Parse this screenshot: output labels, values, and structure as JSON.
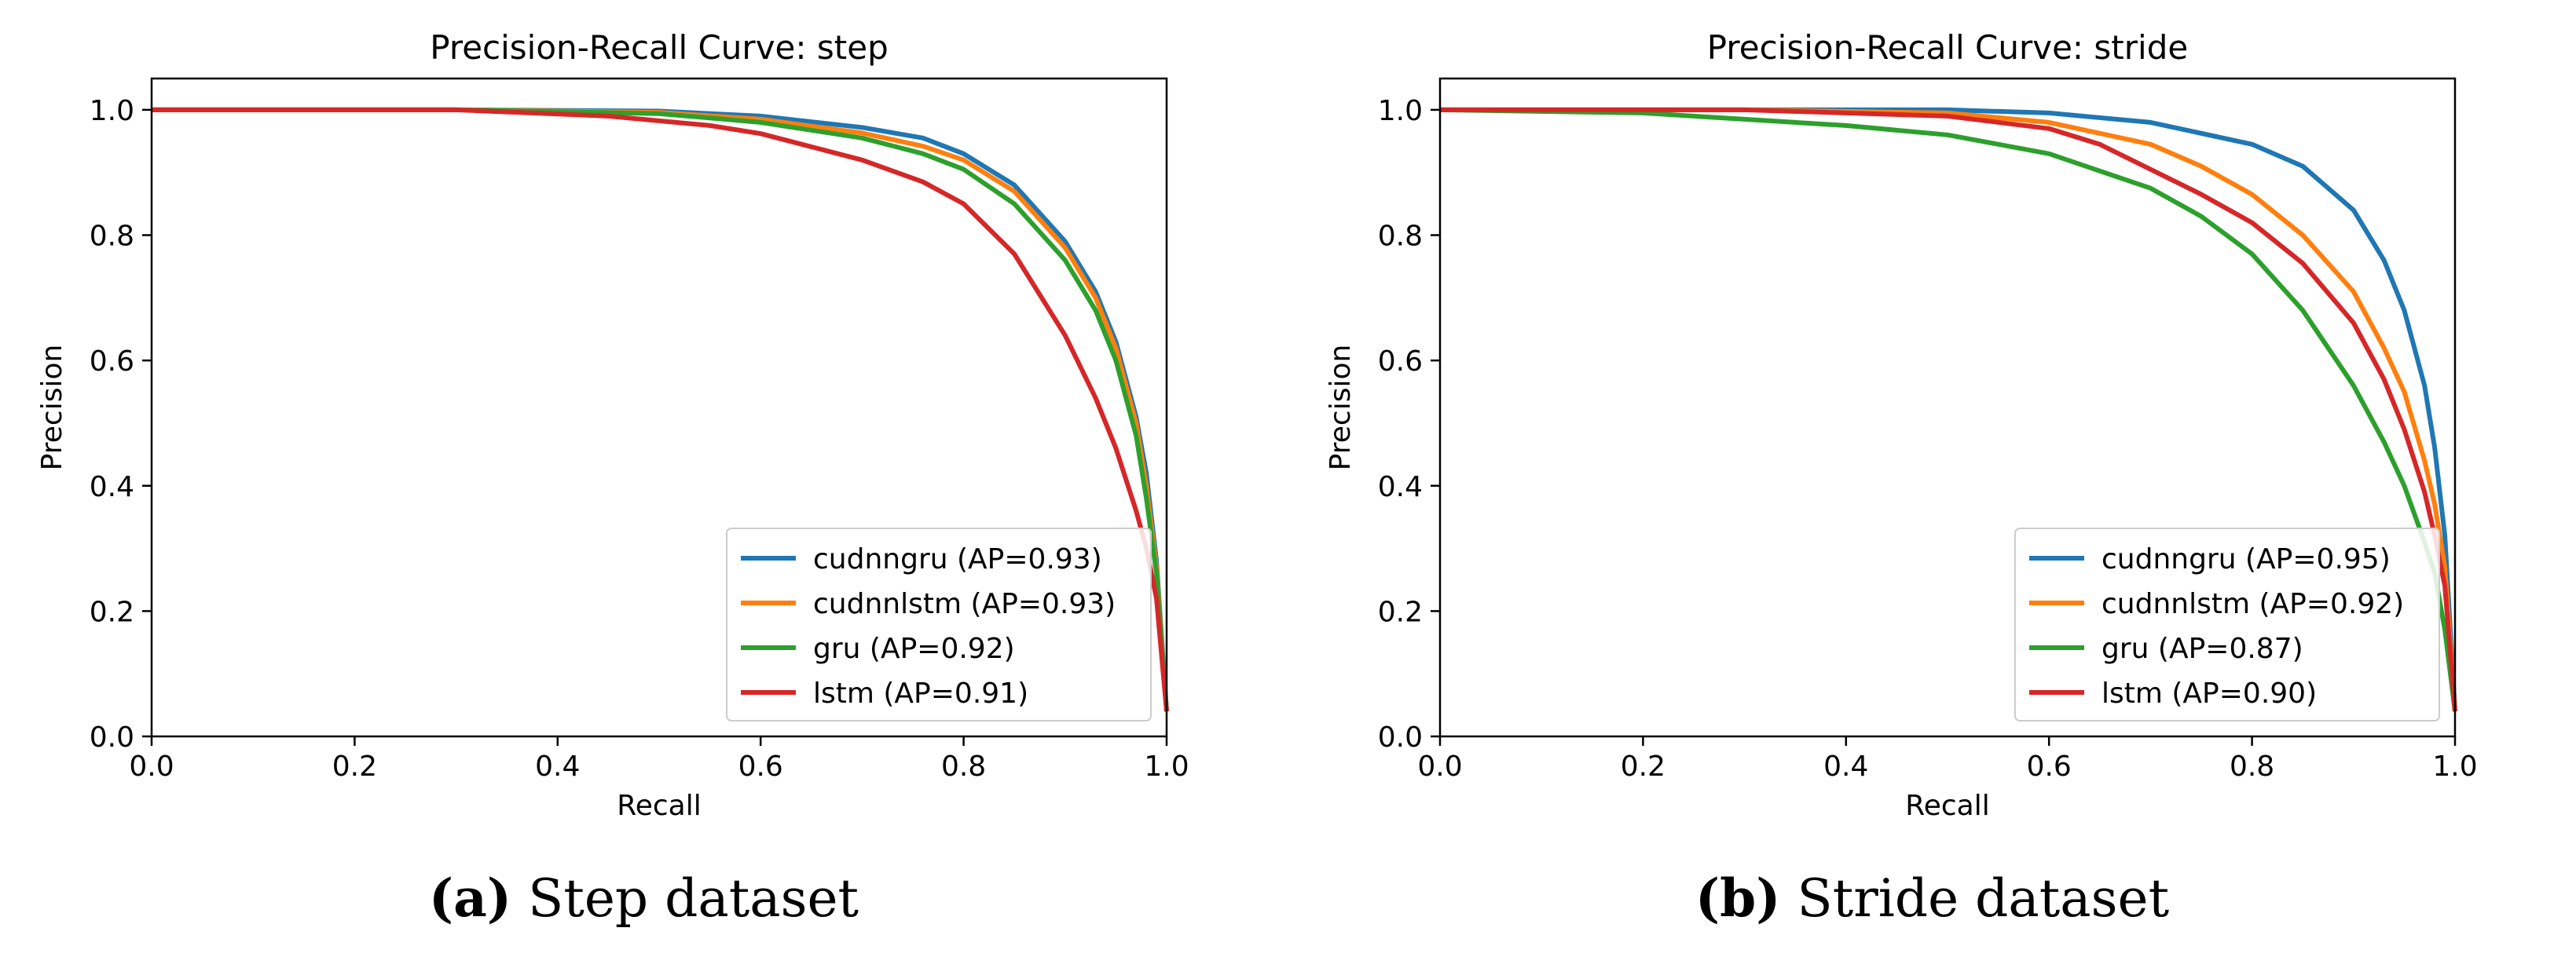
{
  "panels": [
    {
      "caption_label": "(a)",
      "caption_text": "Step dataset",
      "chart_data": {
        "type": "line",
        "title": "Precision-Recall Curve: step",
        "xlabel": "Recall",
        "ylabel": "Precision",
        "xlim": [
          0.0,
          1.0
        ],
        "ylim": [
          0.0,
          1.05
        ],
        "xticks": [
          "0.0",
          "0.2",
          "0.4",
          "0.6",
          "0.8",
          "1.0"
        ],
        "yticks": [
          "0.0",
          "0.2",
          "0.4",
          "0.6",
          "0.8",
          "1.0"
        ],
        "grid": false,
        "legend_position": "lower right",
        "series": [
          {
            "name": "cudnngru (AP=0.93)",
            "color": "#1f77b4",
            "x": [
              0.0,
              0.3,
              0.5,
              0.6,
              0.7,
              0.76,
              0.8,
              0.85,
              0.9,
              0.93,
              0.95,
              0.97,
              0.98,
              0.99,
              1.0
            ],
            "y": [
              1.0,
              1.0,
              0.998,
              0.99,
              0.972,
              0.955,
              0.93,
              0.88,
              0.79,
              0.71,
              0.63,
              0.51,
              0.42,
              0.28,
              0.04
            ]
          },
          {
            "name": "cudnnlstm (AP=0.93)",
            "color": "#ff7f0e",
            "x": [
              0.0,
              0.3,
              0.5,
              0.6,
              0.7,
              0.76,
              0.8,
              0.85,
              0.9,
              0.93,
              0.95,
              0.97,
              0.98,
              0.99,
              1.0
            ],
            "y": [
              1.0,
              1.0,
              0.996,
              0.985,
              0.963,
              0.942,
              0.92,
              0.87,
              0.78,
              0.7,
              0.62,
              0.5,
              0.4,
              0.27,
              0.04
            ]
          },
          {
            "name": "gru (AP=0.92)",
            "color": "#2ca02c",
            "x": [
              0.0,
              0.3,
              0.5,
              0.6,
              0.7,
              0.76,
              0.8,
              0.85,
              0.9,
              0.93,
              0.95,
              0.97,
              0.98,
              0.99,
              1.0
            ],
            "y": [
              1.0,
              1.0,
              0.994,
              0.98,
              0.955,
              0.93,
              0.905,
              0.85,
              0.76,
              0.68,
              0.6,
              0.48,
              0.38,
              0.26,
              0.04
            ]
          },
          {
            "name": "lstm (AP=0.91)",
            "color": "#d62728",
            "x": [
              0.0,
              0.3,
              0.45,
              0.55,
              0.6,
              0.7,
              0.76,
              0.8,
              0.85,
              0.9,
              0.93,
              0.95,
              0.97,
              0.98,
              0.99,
              1.0
            ],
            "y": [
              1.0,
              1.0,
              0.99,
              0.975,
              0.962,
              0.92,
              0.885,
              0.85,
              0.77,
              0.64,
              0.54,
              0.46,
              0.36,
              0.3,
              0.22,
              0.04
            ]
          }
        ]
      }
    },
    {
      "caption_label": "(b)",
      "caption_text": "Stride dataset",
      "chart_data": {
        "type": "line",
        "title": "Precision-Recall Curve: stride",
        "xlabel": "Recall",
        "ylabel": "Precision",
        "xlim": [
          0.0,
          1.0
        ],
        "ylim": [
          0.0,
          1.05
        ],
        "xticks": [
          "0.0",
          "0.2",
          "0.4",
          "0.6",
          "0.8",
          "1.0"
        ],
        "yticks": [
          "0.0",
          "0.2",
          "0.4",
          "0.6",
          "0.8",
          "1.0"
        ],
        "grid": false,
        "legend_position": "lower right",
        "series": [
          {
            "name": "cudnngru (AP=0.95)",
            "color": "#1f77b4",
            "x": [
              0.0,
              0.3,
              0.5,
              0.6,
              0.7,
              0.8,
              0.85,
              0.9,
              0.93,
              0.95,
              0.97,
              0.98,
              0.99,
              1.0
            ],
            "y": [
              1.0,
              1.0,
              1.0,
              0.995,
              0.98,
              0.945,
              0.91,
              0.84,
              0.76,
              0.68,
              0.56,
              0.46,
              0.32,
              0.04
            ]
          },
          {
            "name": "cudnnlstm (AP=0.92)",
            "color": "#ff7f0e",
            "x": [
              0.0,
              0.3,
              0.5,
              0.6,
              0.7,
              0.75,
              0.8,
              0.85,
              0.9,
              0.93,
              0.95,
              0.97,
              0.98,
              0.99,
              1.0
            ],
            "y": [
              1.0,
              1.0,
              0.995,
              0.98,
              0.945,
              0.91,
              0.865,
              0.8,
              0.71,
              0.62,
              0.55,
              0.44,
              0.37,
              0.27,
              0.04
            ]
          },
          {
            "name": "gru (AP=0.87)",
            "color": "#2ca02c",
            "x": [
              0.0,
              0.2,
              0.3,
              0.4,
              0.5,
              0.6,
              0.7,
              0.75,
              0.8,
              0.85,
              0.9,
              0.93,
              0.95,
              0.97,
              0.98,
              0.99,
              1.0
            ],
            "y": [
              1.0,
              0.995,
              0.985,
              0.975,
              0.96,
              0.93,
              0.875,
              0.83,
              0.77,
              0.68,
              0.56,
              0.47,
              0.4,
              0.31,
              0.26,
              0.17,
              0.04
            ]
          },
          {
            "name": "lstm (AP=0.90)",
            "color": "#d62728",
            "x": [
              0.0,
              0.3,
              0.5,
              0.6,
              0.65,
              0.7,
              0.75,
              0.8,
              0.85,
              0.9,
              0.93,
              0.95,
              0.97,
              0.98,
              0.99,
              1.0
            ],
            "y": [
              1.0,
              1.0,
              0.99,
              0.97,
              0.945,
              0.905,
              0.865,
              0.82,
              0.755,
              0.66,
              0.57,
              0.49,
              0.39,
              0.32,
              0.24,
              0.04
            ]
          }
        ]
      }
    }
  ]
}
